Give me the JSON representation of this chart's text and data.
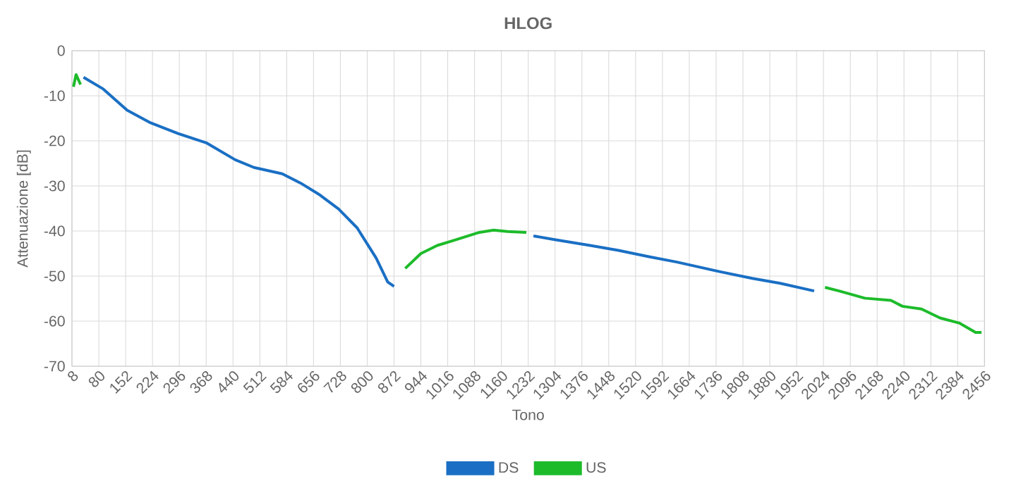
{
  "chart_data": {
    "type": "line",
    "title": "HLOG",
    "xlabel": "Tono",
    "ylabel": "Attenuazione [dB]",
    "xlim": [
      8,
      2456
    ],
    "xticks": [
      8,
      80,
      152,
      224,
      296,
      368,
      440,
      512,
      584,
      656,
      728,
      800,
      872,
      944,
      1016,
      1088,
      1160,
      1232,
      1304,
      1376,
      1448,
      1520,
      1592,
      1664,
      1736,
      1808,
      1880,
      1952,
      2024,
      2096,
      2168,
      2240,
      2312,
      2384,
      2456
    ],
    "ylim": [
      -70,
      0
    ],
    "yticks": [
      -70,
      -60,
      -50,
      -40,
      -30,
      -20,
      -10,
      0
    ],
    "grid": true,
    "legend": "bottom",
    "marker": "none",
    "line_style": "solid",
    "series": [
      {
        "name": "DS",
        "color": "#1a6fc4",
        "x": [
          39,
          92,
          156,
          219,
          294,
          370,
          446,
          496,
          572,
          622,
          673,
          723,
          773,
          824,
          855,
          872,
          1060,
          1246,
          1303,
          1398,
          1474,
          1556,
          1631,
          1745,
          1833,
          1908,
          1999
        ],
        "values": [
          -5.9,
          -8.5,
          -13.2,
          -16.0,
          -18.4,
          -20.5,
          -24.2,
          -25.9,
          -27.3,
          -29.4,
          -32.0,
          -35.1,
          -39.3,
          -46.0,
          -51.3,
          -52.3,
          null,
          -41.1,
          -41.9,
          -43.2,
          -44.3,
          -45.7,
          -46.9,
          -49.0,
          -50.5,
          -51.6,
          -53.3
        ]
      },
      {
        "name": "US",
        "color": "#1dbb2a",
        "x": [
          12,
          19,
          31,
          460,
          902,
          944,
          988,
          1032,
          1101,
          1139,
          1177,
          1227,
          1620,
          2028,
          2066,
          2135,
          2205,
          2236,
          2287,
          2337,
          2388,
          2432,
          2448
        ],
        "values": [
          -8.0,
          -5.3,
          -7.5,
          null,
          -48.3,
          -45.0,
          -43.2,
          -42.1,
          -40.3,
          -39.8,
          -40.1,
          -40.3,
          null,
          -52.5,
          -53.3,
          -54.9,
          -55.4,
          -56.7,
          -57.3,
          -59.3,
          -60.4,
          -62.5,
          -62.5
        ]
      }
    ]
  }
}
